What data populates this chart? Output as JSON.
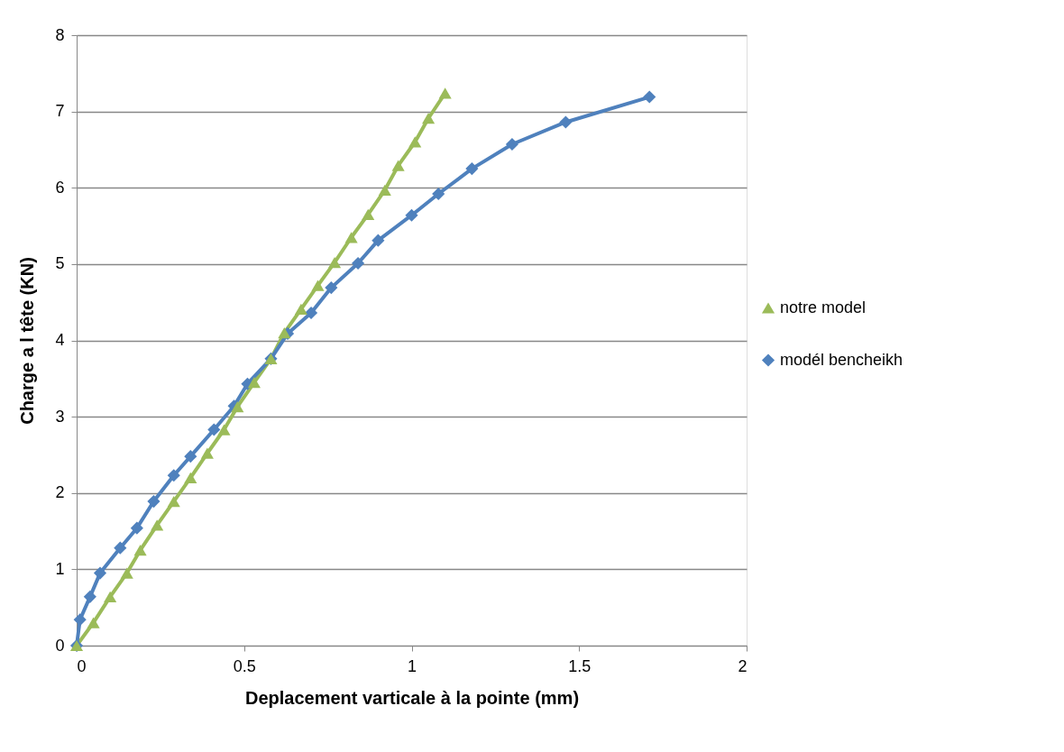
{
  "chart_data": {
    "type": "line",
    "xlabel": "Deplacement varticale à la pointe (mm)",
    "ylabel": "Charge a l tête (KN)",
    "xlim": [
      0,
      2
    ],
    "xticks": [
      0,
      0.5,
      1,
      1.5,
      2
    ],
    "ylim": [
      0,
      8
    ],
    "yticks": [
      0,
      1,
      2,
      3,
      4,
      5,
      6,
      7,
      8
    ],
    "grid": "y",
    "legend": "right",
    "line_style": "solid",
    "series": [
      {
        "name": "notre model",
        "color": "#9bbb59",
        "marker": "triangle",
        "x": [
          0,
          0.05,
          0.1,
          0.15,
          0.19,
          0.24,
          0.29,
          0.34,
          0.39,
          0.44,
          0.48,
          0.53,
          0.58,
          0.62,
          0.67,
          0.72,
          0.77,
          0.82,
          0.87,
          0.92,
          0.96,
          1.01,
          1.05,
          1.1
        ],
        "values": [
          0,
          0.3,
          0.64,
          0.95,
          1.25,
          1.58,
          1.89,
          2.2,
          2.52,
          2.83,
          3.13,
          3.45,
          3.76,
          4.1,
          4.41,
          4.72,
          5.02,
          5.35,
          5.65,
          5.97,
          6.29,
          6.6,
          6.91,
          7.24
        ]
      },
      {
        "name": "modél bencheikh",
        "color": "#4f81bd",
        "marker": "diamond",
        "x": [
          0,
          0.01,
          0.04,
          0.07,
          0.13,
          0.18,
          0.23,
          0.29,
          0.34,
          0.41,
          0.47,
          0.51,
          0.58,
          0.63,
          0.7,
          0.76,
          0.84,
          0.9,
          1.0,
          1.08,
          1.18,
          1.3,
          1.46,
          1.71
        ],
        "values": [
          0,
          0.34,
          0.64,
          0.95,
          1.28,
          1.54,
          1.89,
          2.23,
          2.48,
          2.83,
          3.14,
          3.43,
          3.76,
          4.09,
          4.36,
          4.69,
          5.01,
          5.31,
          5.64,
          5.92,
          6.25,
          6.57,
          6.86,
          7.19
        ]
      }
    ]
  }
}
